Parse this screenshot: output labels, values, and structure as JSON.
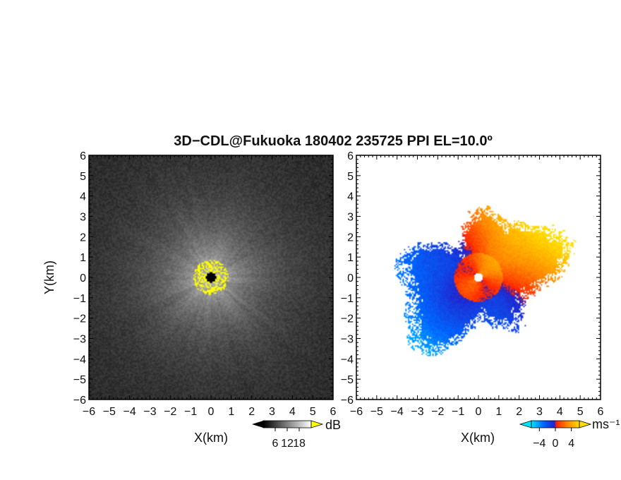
{
  "chart_data": {
    "title": "3D−CDL@Fukuoka 180402 235725 PPI EL=10.0º",
    "panels": [
      {
        "type": "heatmap",
        "field": "backscatter intensity",
        "xlabel": "X(km)",
        "ylabel": "Y(km)",
        "xlim": [
          -6,
          6
        ],
        "ylim": [
          -6,
          6
        ],
        "x_ticks": [
          "−6",
          "−5",
          "−4",
          "−3",
          "−2",
          "−1",
          "0",
          "1",
          "2",
          "3",
          "4",
          "5",
          "6"
        ],
        "y_ticks": [
          "−6",
          "−5",
          "−4",
          "−3",
          "−2",
          "−1",
          "0",
          "1",
          "2",
          "3",
          "4",
          "5",
          "6"
        ],
        "colorbar": {
          "unit": "dB",
          "ticks": [
            "6",
            "12",
            "18"
          ],
          "range": [
            0,
            24
          ],
          "colors": [
            "#000000",
            "#ffffff"
          ],
          "over_color": "#ffff00"
        },
        "features": {
          "background_db": 2,
          "center_db": 22,
          "saturated_ring_radius_km": 0.8
        }
      },
      {
        "type": "heatmap",
        "field": "radial velocity",
        "xlabel": "X(km)",
        "ylabel": "",
        "xlim": [
          -6,
          6
        ],
        "ylim": [
          -6,
          6
        ],
        "x_ticks": [
          "−6",
          "−5",
          "−4",
          "−3",
          "−2",
          "−1",
          "0",
          "1",
          "2",
          "3",
          "4",
          "5",
          "6"
        ],
        "y_ticks": [
          "−6",
          "−5",
          "−4",
          "−3",
          "−2",
          "−1",
          "0",
          "1",
          "2",
          "3",
          "4",
          "5",
          "6"
        ],
        "colorbar": {
          "unit": "ms⁻¹",
          "ticks": [
            "−4",
            "0",
            "4"
          ],
          "range": [
            -6,
            6
          ],
          "colors": [
            "#00e5ff",
            "#0055ff",
            "#2222dd",
            "#ff2200",
            "#ff8800",
            "#ffdd00"
          ]
        },
        "features": {
          "max_range_km": 4.5
        }
      }
    ]
  }
}
